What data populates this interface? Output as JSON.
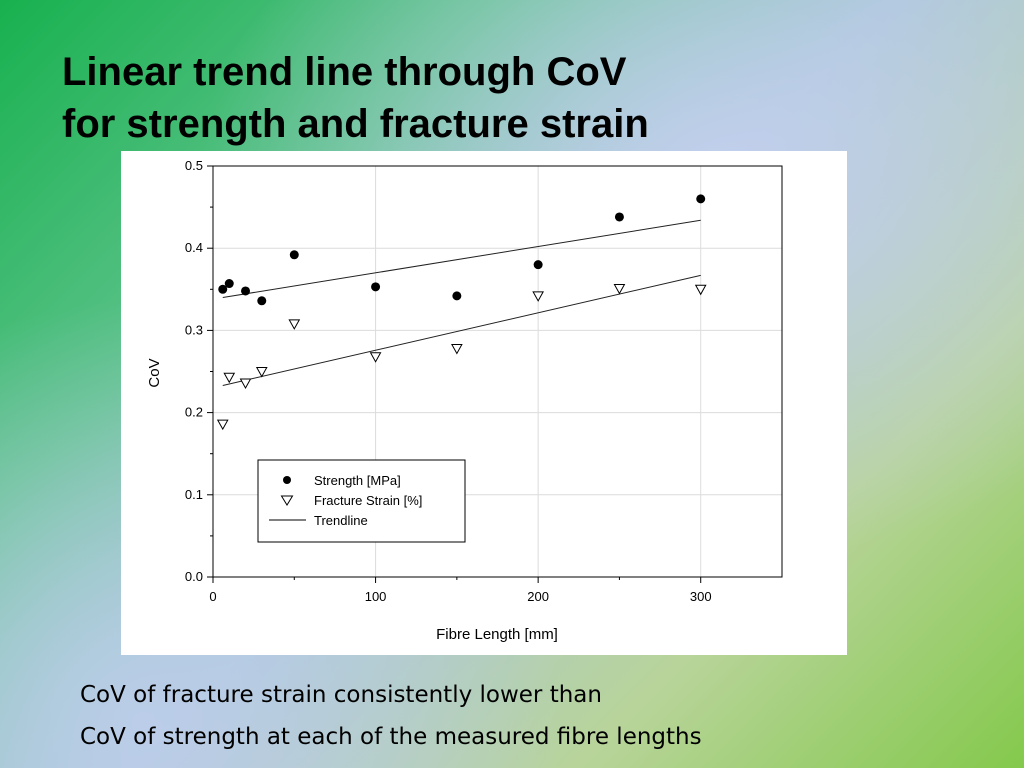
{
  "slide": {
    "title_lines": [
      "Linear trend line through CoV",
      "for strength and fracture strain"
    ],
    "caption_lines": [
      "CoV of fracture strain consistently lower than",
      "CoV of strength at each of the measured fibre lengths"
    ]
  },
  "chart_data": {
    "type": "scatter",
    "xlabel": "Fibre Length [mm]",
    "ylabel": "CoV",
    "xlim": [
      0,
      350
    ],
    "ylim": [
      0,
      0.5
    ],
    "xticks": [
      "0",
      "100",
      "200",
      "300"
    ],
    "yticks": [
      "0.0",
      "0.1",
      "0.2",
      "0.3",
      "0.4",
      "0.5"
    ],
    "grid": true,
    "legend_position": "bottom-left",
    "series": [
      {
        "name": "Strength [MPa]",
        "marker": "filled-circle",
        "color": "#000000",
        "points": [
          [
            6,
            0.35
          ],
          [
            10,
            0.357
          ],
          [
            20,
            0.348
          ],
          [
            30,
            0.336
          ],
          [
            50,
            0.392
          ],
          [
            100,
            0.353
          ],
          [
            150,
            0.342
          ],
          [
            200,
            0.38
          ],
          [
            250,
            0.438
          ],
          [
            300,
            0.46
          ]
        ]
      },
      {
        "name": "Fracture Strain [%]",
        "marker": "open-triangle-down",
        "color": "#000000",
        "points": [
          [
            6,
            0.186
          ],
          [
            10,
            0.243
          ],
          [
            20,
            0.236
          ],
          [
            30,
            0.25
          ],
          [
            50,
            0.308
          ],
          [
            100,
            0.268
          ],
          [
            150,
            0.278
          ],
          [
            200,
            0.342
          ],
          [
            250,
            0.351
          ],
          [
            300,
            0.35
          ]
        ]
      }
    ],
    "trendlines": [
      {
        "series": "Strength [MPa]",
        "from": [
          6,
          0.34
        ],
        "to": [
          300,
          0.434
        ]
      },
      {
        "series": "Fracture Strain [%]",
        "from": [
          6,
          0.233
        ],
        "to": [
          300,
          0.367
        ]
      }
    ],
    "legend": {
      "entries": [
        {
          "label": "Strength [MPa]",
          "marker": "filled-circle"
        },
        {
          "label": "Fracture Strain [%]",
          "marker": "open-triangle-down"
        },
        {
          "label": "Trendline",
          "marker": "line"
        }
      ]
    }
  }
}
